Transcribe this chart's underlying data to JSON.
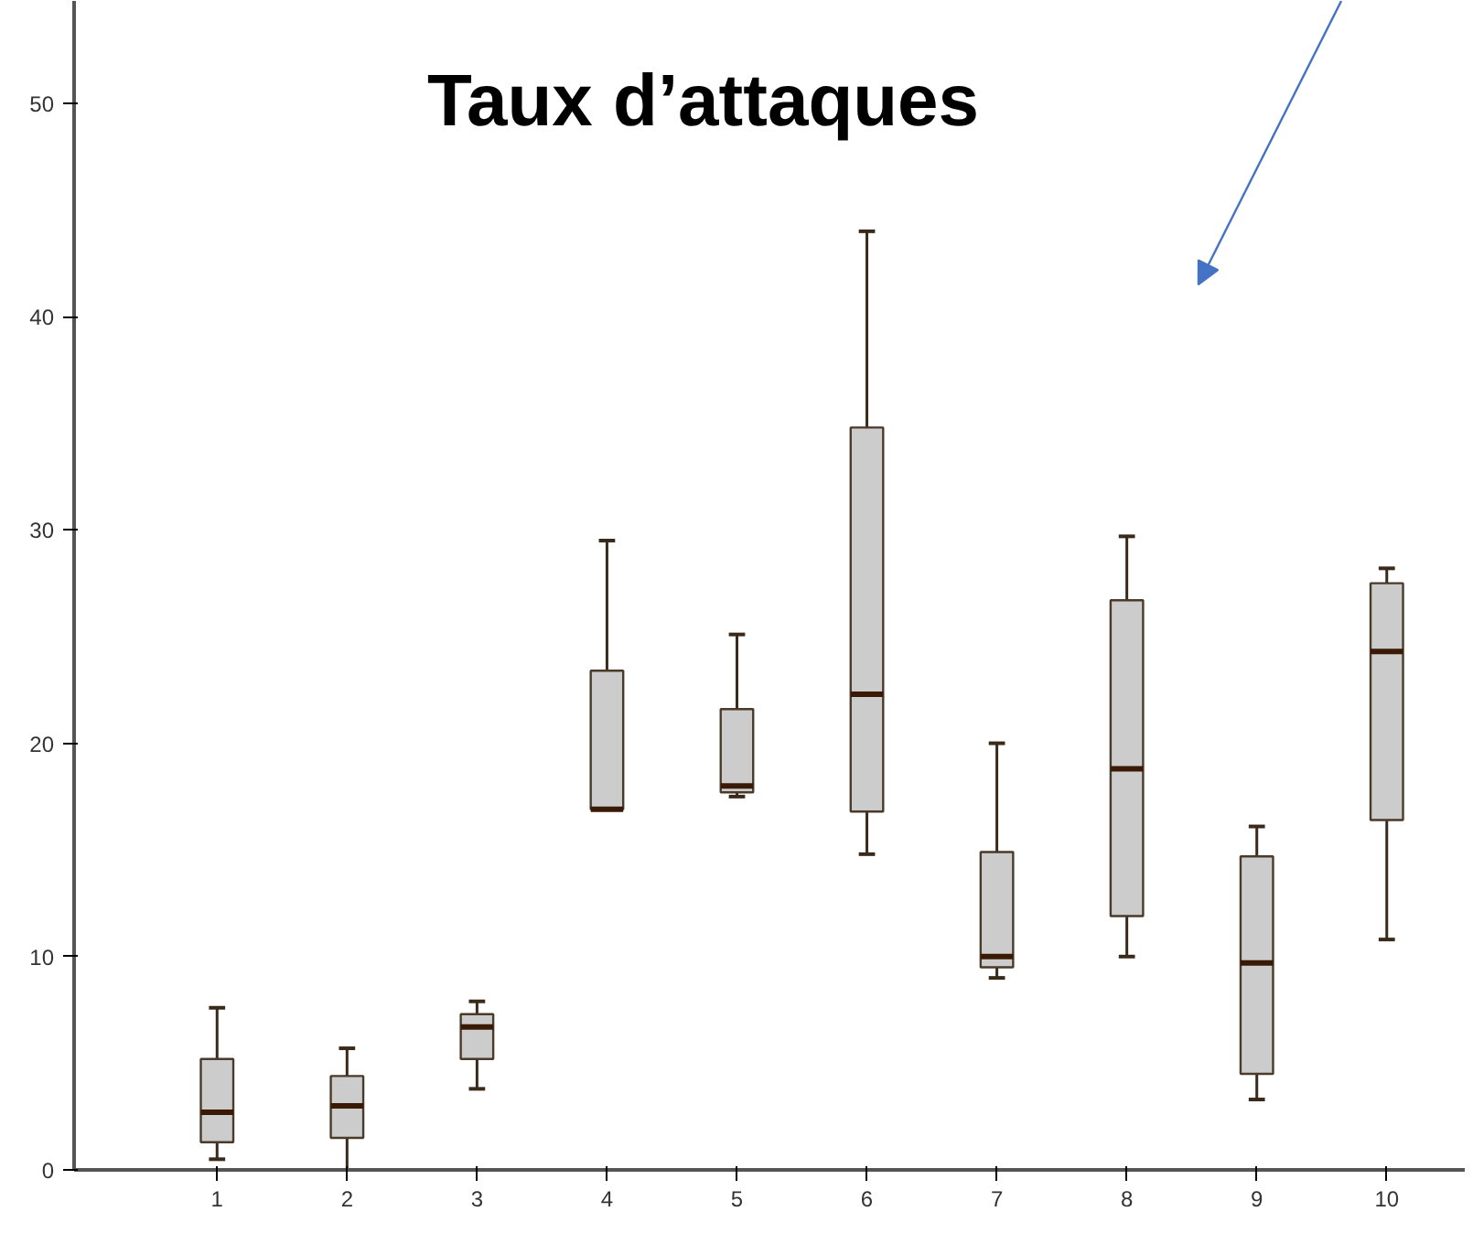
{
  "chart_data": {
    "type": "box",
    "title": "Taux d’attaques",
    "categories": [
      "1",
      "2",
      "3",
      "4",
      "5",
      "6",
      "7",
      "8",
      "9",
      "10"
    ],
    "color": "#cccccc",
    "boxes": [
      {
        "low": 0.5,
        "q1": 1.3,
        "median": 2.7,
        "q3": 5.2,
        "high": 7.6
      },
      {
        "low": 0,
        "q1": 1.5,
        "median": 3.0,
        "q3": 4.4,
        "high": 5.7
      },
      {
        "low": 3.8,
        "q1": 5.2,
        "median": 6.7,
        "q3": 7.3,
        "high": 7.9
      },
      {
        "low": 16.9,
        "q1": 16.9,
        "median": 16.9,
        "q3": 23.4,
        "high": 29.5
      },
      {
        "low": 17.5,
        "q1": 17.7,
        "median": 18.0,
        "q3": 21.6,
        "high": 25.1
      },
      {
        "low": 14.8,
        "q1": 16.8,
        "median": 22.3,
        "q3": 34.8,
        "high": 44.0
      },
      {
        "low": 9.0,
        "q1": 9.5,
        "median": 10.0,
        "q3": 14.9,
        "high": 20.0
      },
      {
        "low": 10.0,
        "q1": 11.9,
        "median": 18.8,
        "q3": 26.7,
        "high": 29.7
      },
      {
        "low": 3.3,
        "q1": 4.5,
        "median": 9.7,
        "q3": 14.7,
        "high": 16.1
      },
      {
        "low": 10.8,
        "q1": 16.4,
        "median": 24.3,
        "q3": 27.5,
        "high": 28.2
      }
    ],
    "ylim": [
      0,
      54.8
    ],
    "yticks": [
      0,
      10,
      20,
      30,
      40,
      50
    ],
    "grid": false
  }
}
